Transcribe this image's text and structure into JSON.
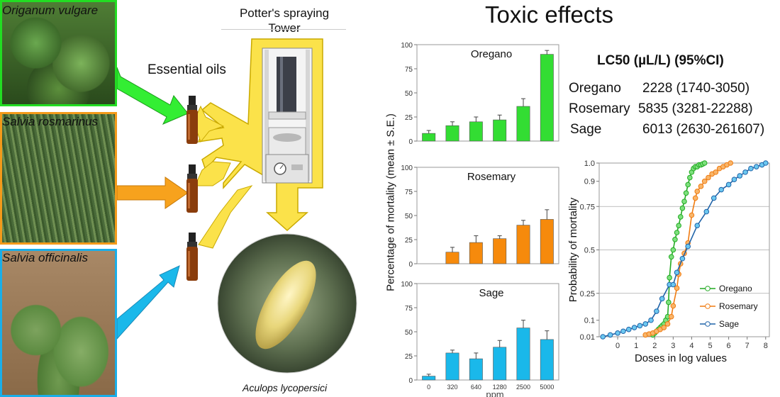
{
  "plants": [
    {
      "name": "Origanum vulgare",
      "color": "#22dd22"
    },
    {
      "name": "Salvia rosmarinus",
      "color": "#f39a1a"
    },
    {
      "name": "Salvia officinalis",
      "color": "#1aaee8"
    }
  ],
  "labels": {
    "essential_oils": "Essential oils",
    "tower_line1": "Potter's spraying",
    "tower_line2": "Tower",
    "mite": "Aculops lycopersici",
    "toxic_title": "Toxic effects",
    "lc50_title": "LC50 (µL/L) (95%CI)"
  },
  "lc50": [
    {
      "name": "Oregano",
      "value": "2228 (1740-3050)"
    },
    {
      "name": "Rosemary",
      "value": "5835 (3281-22288)"
    },
    {
      "name": "Sage",
      "value": "6013 (2630-261607)"
    }
  ],
  "chart_data": [
    {
      "type": "bar",
      "title": "Oregano",
      "categories": [
        "0",
        "320",
        "640",
        "1280",
        "2500",
        "5000"
      ],
      "values": [
        8,
        16,
        20,
        22,
        36,
        90
      ],
      "errors": [
        3,
        4,
        5,
        5,
        8,
        4
      ],
      "ylim": [
        0,
        100
      ],
      "yticks": [
        0,
        25,
        50,
        75,
        100
      ],
      "color": "#33dd33"
    },
    {
      "type": "bar",
      "title": "Rosemary",
      "categories": [
        "0",
        "320",
        "640",
        "1280",
        "2500",
        "5000"
      ],
      "values": [
        0,
        12,
        22,
        26,
        40,
        46
      ],
      "errors": [
        0,
        5,
        7,
        3,
        5,
        10
      ],
      "ylim": [
        0,
        100
      ],
      "yticks": [
        0,
        25,
        50,
        75,
        100
      ],
      "color": "#f68a0c"
    },
    {
      "type": "bar",
      "title": "Sage",
      "categories": [
        "0",
        "320",
        "640",
        "1280",
        "2500",
        "5000"
      ],
      "values": [
        4,
        28,
        22,
        34,
        54,
        42
      ],
      "errors": [
        2,
        3,
        6,
        7,
        8,
        9
      ],
      "ylim": [
        0,
        100
      ],
      "yticks": [
        0,
        25,
        50,
        75,
        100
      ],
      "color": "#1ab8ea",
      "xlabel": "ppm"
    },
    {
      "type": "line",
      "ylabel": "Probability of mortality",
      "xlabel": "Doses in log values",
      "xlim": [
        -1,
        8.2
      ],
      "xticks": [
        0,
        1,
        2,
        3,
        4,
        5,
        6,
        7,
        8
      ],
      "yticks": [
        0.01,
        0.1,
        0.25,
        0.5,
        0.75,
        0.9,
        1.0
      ],
      "ytick_labels": [
        "0.01",
        "0.1",
        "0.25",
        "0.5",
        "0.75",
        "0.9",
        "1.0"
      ],
      "gridlines_y": [
        0.25,
        0.5,
        0.75
      ],
      "legend": "center-right",
      "series": [
        {
          "name": "Oregano",
          "color": "#22aa22",
          "x": [
            1.9,
            2.0,
            2.1,
            2.2,
            2.3,
            2.4,
            2.5,
            2.6,
            2.7,
            2.75,
            2.8,
            2.9,
            3.0,
            3.1,
            3.2,
            3.3,
            3.4,
            3.5,
            3.6,
            3.7,
            3.8,
            3.9,
            4.0,
            4.1,
            4.2,
            4.3,
            4.4,
            4.5,
            4.6,
            4.7
          ],
          "y": [
            0.02,
            0.03,
            0.04,
            0.05,
            0.06,
            0.07,
            0.08,
            0.1,
            0.12,
            0.2,
            0.34,
            0.46,
            0.5,
            0.56,
            0.6,
            0.64,
            0.69,
            0.74,
            0.78,
            0.83,
            0.88,
            0.92,
            0.95,
            0.97,
            0.98,
            0.98,
            0.99,
            0.99,
            0.995,
            1.0
          ]
        },
        {
          "name": "Rosemary",
          "color": "#f07b10",
          "x": [
            1.5,
            1.7,
            1.9,
            2.1,
            2.3,
            2.5,
            2.7,
            2.9,
            3.0,
            3.2,
            3.3,
            3.4,
            3.6,
            3.8,
            4.0,
            4.2,
            4.3,
            4.5,
            4.7,
            4.9,
            5.1,
            5.3,
            5.5,
            5.7,
            5.9,
            6.1
          ],
          "y": [
            0.02,
            0.025,
            0.03,
            0.04,
            0.05,
            0.06,
            0.08,
            0.12,
            0.18,
            0.28,
            0.36,
            0.42,
            0.48,
            0.54,
            0.7,
            0.8,
            0.84,
            0.87,
            0.9,
            0.92,
            0.94,
            0.95,
            0.97,
            0.98,
            0.99,
            1.0
          ]
        },
        {
          "name": "Sage",
          "color": "#1f63a8",
          "x": [
            -0.8,
            -0.4,
            0.0,
            0.3,
            0.6,
            0.9,
            1.2,
            1.5,
            1.8,
            2.1,
            2.4,
            2.8,
            3.0,
            3.2,
            3.5,
            3.8,
            4.3,
            4.8,
            5.2,
            5.6,
            6.0,
            6.3,
            6.6,
            6.9,
            7.2,
            7.5,
            7.8,
            8.0
          ],
          "y": [
            0.01,
            0.02,
            0.03,
            0.04,
            0.05,
            0.06,
            0.07,
            0.08,
            0.1,
            0.15,
            0.22,
            0.3,
            0.3,
            0.37,
            0.45,
            0.52,
            0.64,
            0.72,
            0.8,
            0.85,
            0.88,
            0.91,
            0.93,
            0.95,
            0.97,
            0.98,
            0.99,
            1.0
          ]
        }
      ]
    }
  ],
  "axes": {
    "bar_ylabel": "Percentage of mortality (mean ± S.E.)"
  }
}
